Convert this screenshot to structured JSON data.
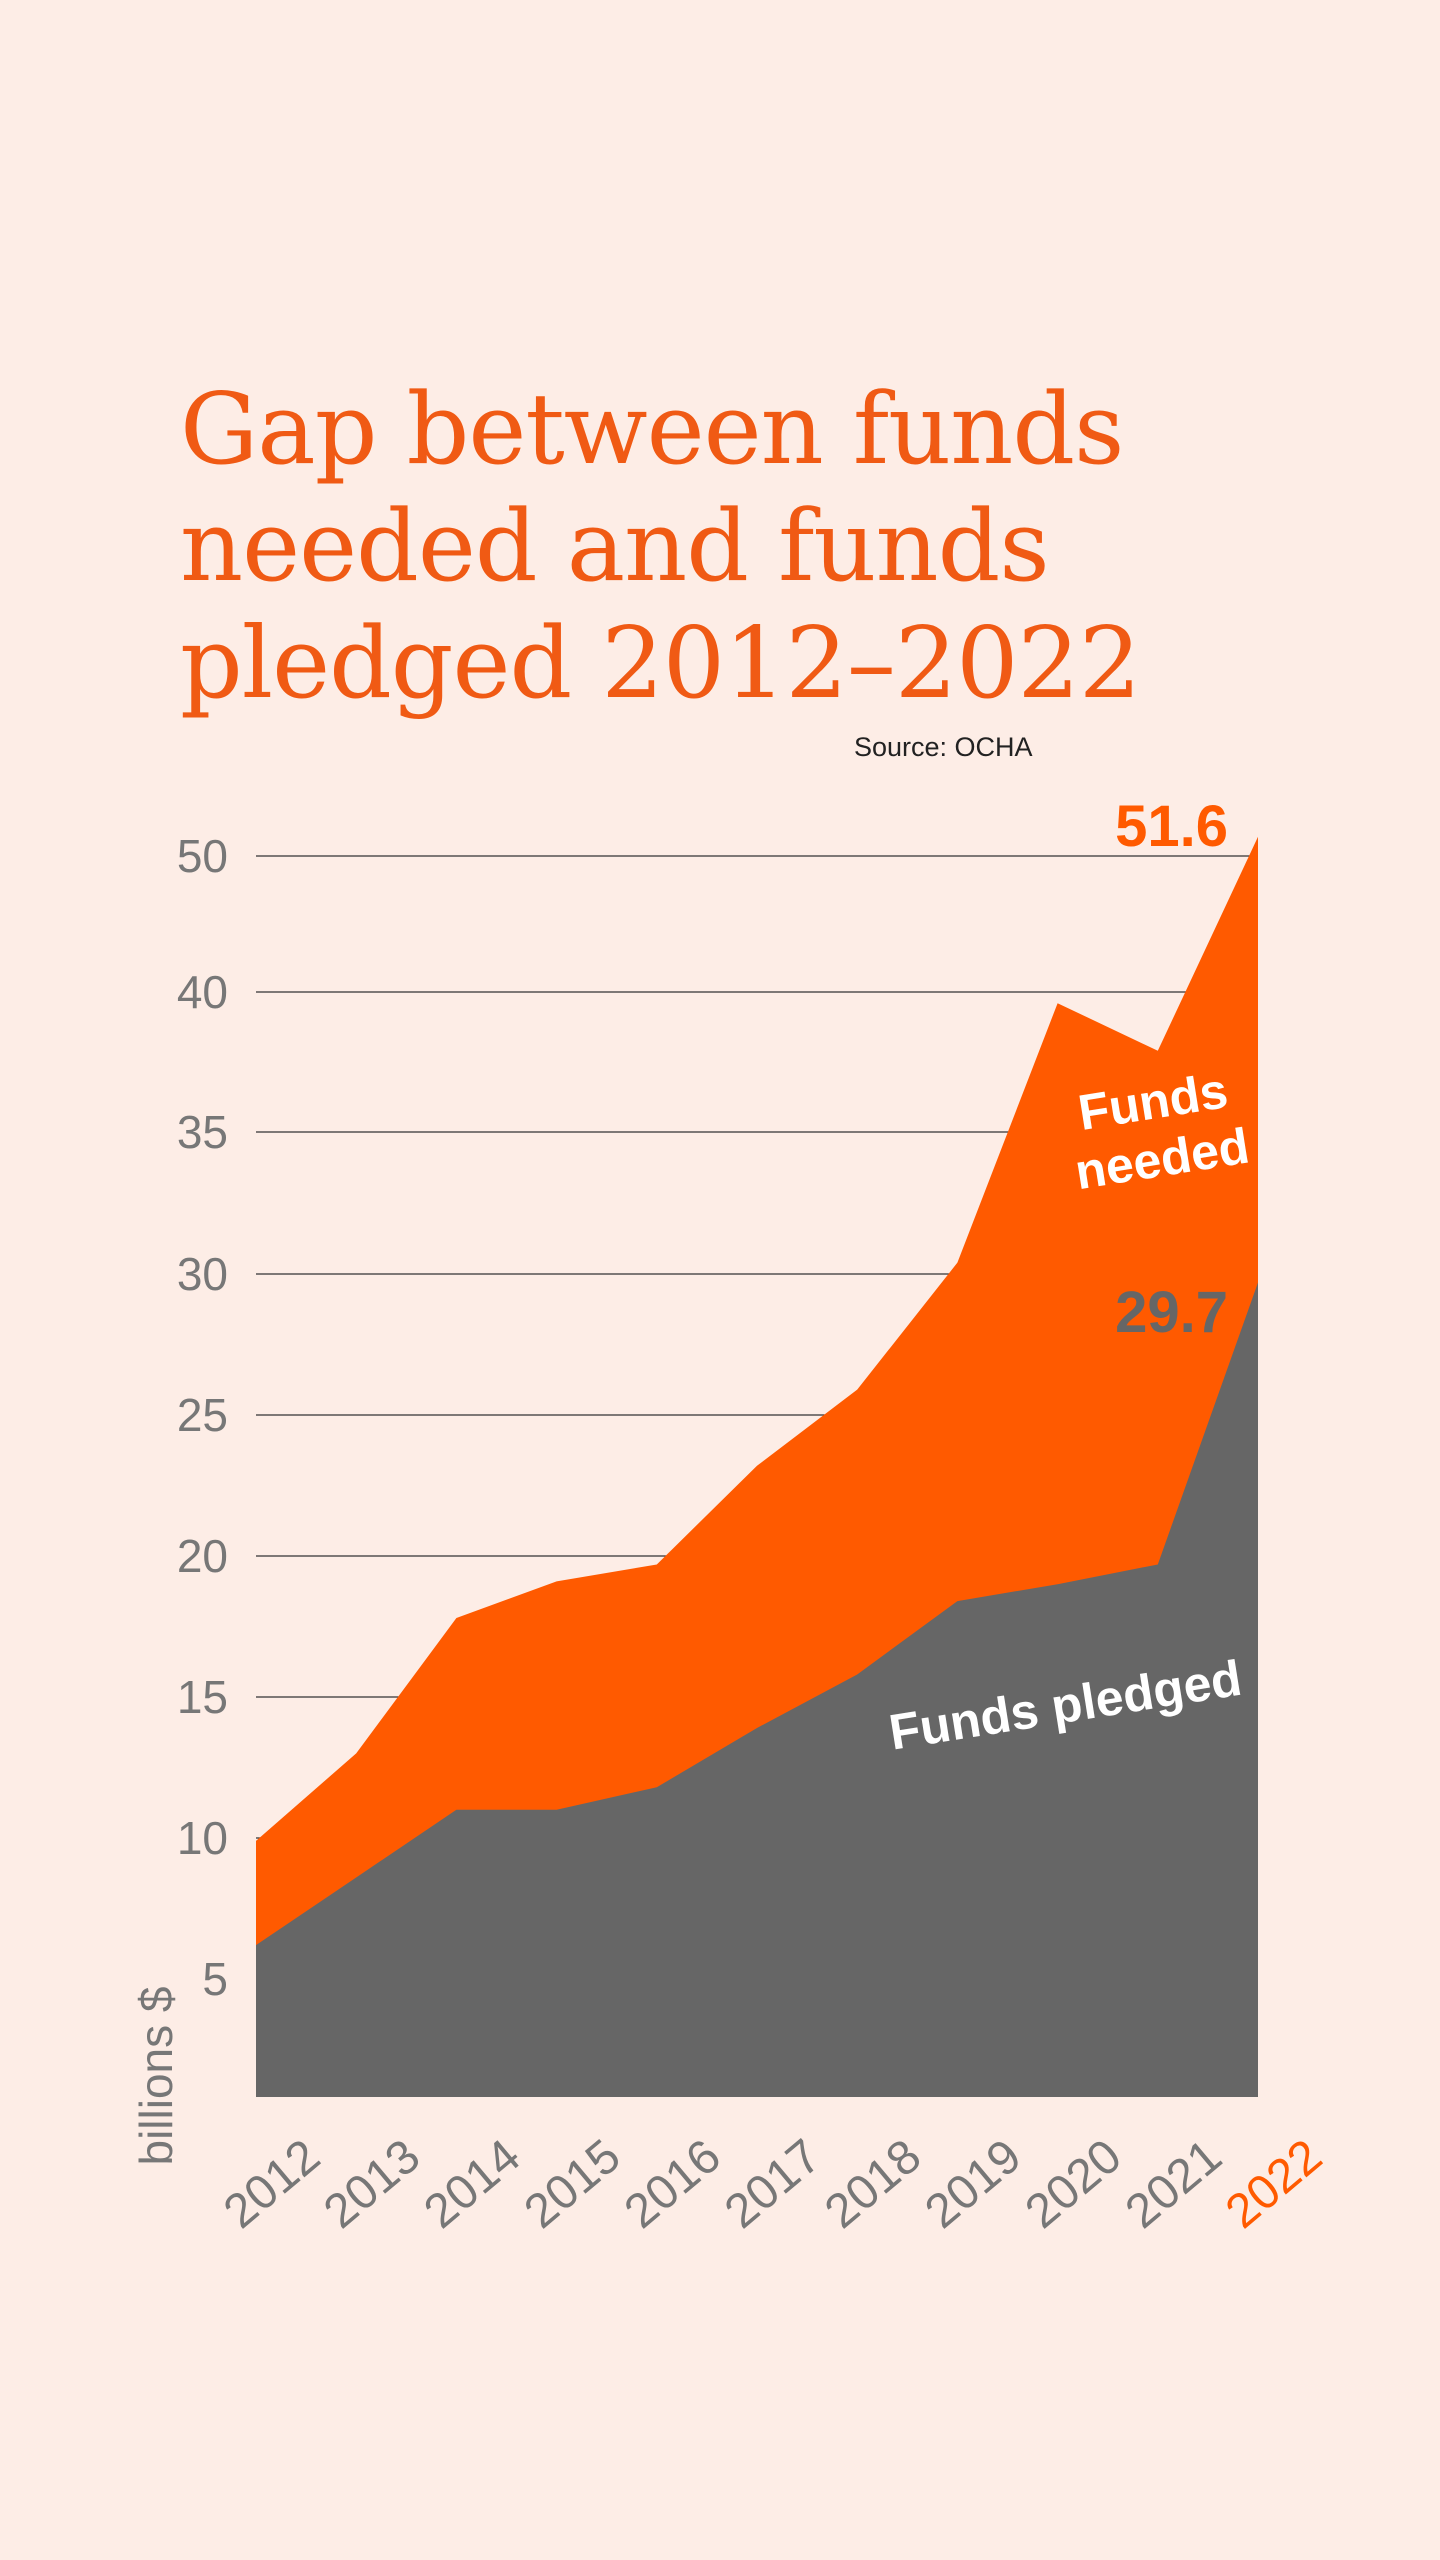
{
  "colors": {
    "background": "#fdede6",
    "needed": "#ff5a00",
    "pledged": "#666666",
    "title": "#f05a14",
    "tick": "#777777",
    "gridline": "#333333"
  },
  "chart_data": {
    "type": "area",
    "title": [
      "Gap between funds",
      "needed and funds",
      "pledged 2012–2022"
    ],
    "source": "Source: OCHA",
    "ylabel": "billions $",
    "x": [
      "2012",
      "2013",
      "2014",
      "2015",
      "2016",
      "2017",
      "2018",
      "2019",
      "2020",
      "2021",
      "2022"
    ],
    "y_tick_values": [
      5,
      10,
      15,
      20,
      25,
      30,
      35,
      40,
      50
    ],
    "y_tick_labels": [
      "5",
      "10",
      "15",
      "20",
      "25",
      "30",
      "35",
      "40",
      "50"
    ],
    "y_scale": "nonlinear (evenly spaced tick labels, gap from 40 to 50)",
    "grid": true,
    "series": [
      {
        "name": "Funds needed",
        "label": [
          "Funds",
          "needed"
        ],
        "values": [
          9.9,
          13.0,
          17.8,
          19.1,
          19.7,
          23.2,
          25.9,
          30.4,
          39.6,
          37.9,
          51.6
        ]
      },
      {
        "name": "Funds pledged",
        "label": [
          "Funds pledged"
        ],
        "values": [
          6.2,
          8.6,
          11.0,
          11.0,
          11.8,
          13.9,
          15.8,
          18.4,
          19.0,
          19.7,
          29.7
        ]
      }
    ],
    "annotations": [
      {
        "text": "51.6",
        "series": "Funds needed",
        "x": "2022"
      },
      {
        "text": "29.7",
        "series": "Funds pledged",
        "x": "2022"
      }
    ],
    "highlight_x": "2022"
  }
}
